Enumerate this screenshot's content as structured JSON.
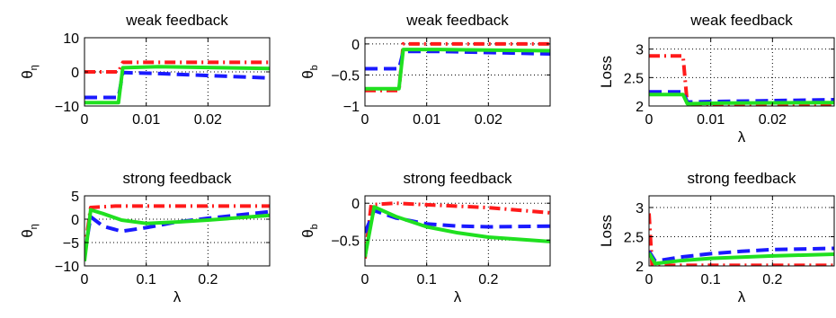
{
  "colors": {
    "red": "#ff1a1a",
    "blue": "#1a1aff",
    "green": "#20e020",
    "axis": "#000000",
    "grid": "#000000"
  },
  "chart_data": [
    {
      "type": "line",
      "title": "weak feedback",
      "ylabel": "θ",
      "ylabel_sub": "η",
      "xlabel": "",
      "xlim": [
        0,
        0.03
      ],
      "ylim": [
        -10,
        10
      ],
      "xticks": [
        0,
        0.01,
        0.02
      ],
      "xtick_labels": [
        "0",
        "0.01",
        "0.02"
      ],
      "yticks": [
        -10,
        0,
        10
      ],
      "ytick_labels": [
        "−10",
        "0",
        "10"
      ],
      "grid": true,
      "series": [
        {
          "color": "red",
          "style": "dashdot",
          "points": [
            [
              0,
              0
            ],
            [
              0.0055,
              0
            ],
            [
              0.0062,
              2.8
            ],
            [
              0.012,
              2.8
            ],
            [
              0.03,
              2.8
            ]
          ]
        },
        {
          "color": "blue",
          "style": "dashed",
          "points": [
            [
              0,
              -7.5
            ],
            [
              0.0055,
              -7.5
            ],
            [
              0.0062,
              -0.2
            ],
            [
              0.012,
              -0.5
            ],
            [
              0.03,
              -1.8
            ]
          ]
        },
        {
          "color": "green",
          "style": "solid",
          "points": [
            [
              0,
              -9
            ],
            [
              0.0055,
              -9
            ],
            [
              0.0062,
              1.2
            ],
            [
              0.012,
              1.5
            ],
            [
              0.03,
              1.0
            ]
          ]
        }
      ]
    },
    {
      "type": "line",
      "title": "weak feedback",
      "ylabel": "θ",
      "ylabel_sub": "b",
      "xlabel": "",
      "xlim": [
        0,
        0.03
      ],
      "ylim": [
        -1,
        0.1
      ],
      "xticks": [
        0,
        0.01,
        0.02
      ],
      "xtick_labels": [
        "0",
        "0.01",
        "0.02"
      ],
      "yticks": [
        -1,
        -0.5,
        0
      ],
      "ytick_labels": [
        "−1",
        "−0.5",
        "0"
      ],
      "grid": true,
      "series": [
        {
          "color": "red",
          "style": "dashdot",
          "points": [
            [
              0,
              -0.75
            ],
            [
              0.0055,
              -0.75
            ],
            [
              0.0062,
              0
            ],
            [
              0.012,
              0
            ],
            [
              0.03,
              0
            ]
          ]
        },
        {
          "color": "blue",
          "style": "dashed",
          "points": [
            [
              0,
              -0.4
            ],
            [
              0.0055,
              -0.4
            ],
            [
              0.0062,
              -0.12
            ],
            [
              0.012,
              -0.12
            ],
            [
              0.03,
              -0.16
            ]
          ]
        },
        {
          "color": "green",
          "style": "solid",
          "points": [
            [
              0,
              -0.72
            ],
            [
              0.0055,
              -0.72
            ],
            [
              0.0062,
              -0.09
            ],
            [
              0.012,
              -0.09
            ],
            [
              0.03,
              -0.11
            ]
          ]
        }
      ]
    },
    {
      "type": "line",
      "title": "weak feedback",
      "ylabel": "Loss",
      "xlabel": "λ",
      "xlim": [
        0,
        0.03
      ],
      "ylim": [
        2,
        3.2
      ],
      "xticks": [
        0,
        0.01,
        0.02
      ],
      "xtick_labels": [
        "0",
        "0.01",
        "0.02"
      ],
      "yticks": [
        2,
        2.5,
        3
      ],
      "ytick_labels": [
        "2",
        "2.5",
        "3"
      ],
      "grid": true,
      "series": [
        {
          "color": "red",
          "style": "dashdot",
          "points": [
            [
              0,
              2.88
            ],
            [
              0.0055,
              2.88
            ],
            [
              0.0062,
              2.03
            ],
            [
              0.012,
              2.03
            ],
            [
              0.03,
              2.03
            ]
          ]
        },
        {
          "color": "blue",
          "style": "dashed",
          "points": [
            [
              0,
              2.25
            ],
            [
              0.0055,
              2.25
            ],
            [
              0.0062,
              2.07
            ],
            [
              0.012,
              2.08
            ],
            [
              0.03,
              2.11
            ]
          ]
        },
        {
          "color": "green",
          "style": "solid",
          "points": [
            [
              0,
              2.2
            ],
            [
              0.0055,
              2.2
            ],
            [
              0.0062,
              2.04
            ],
            [
              0.012,
              2.05
            ],
            [
              0.03,
              2.06
            ]
          ]
        }
      ]
    },
    {
      "type": "line",
      "title": "strong feedback",
      "ylabel": "θ",
      "ylabel_sub": "η",
      "xlabel": "λ",
      "xlim": [
        0,
        0.3
      ],
      "ylim": [
        -10,
        5
      ],
      "xticks": [
        0,
        0.1,
        0.2
      ],
      "xtick_labels": [
        "0",
        "0.1",
        "0.2"
      ],
      "yticks": [
        -10,
        -5,
        0,
        5
      ],
      "ytick_labels": [
        "−10",
        "−5",
        "0",
        "5"
      ],
      "grid": true,
      "series": [
        {
          "color": "red",
          "style": "dashdot",
          "points": [
            [
              0,
              -7
            ],
            [
              0.01,
              2.5
            ],
            [
              0.05,
              2.8
            ],
            [
              0.1,
              2.8
            ],
            [
              0.2,
              2.8
            ],
            [
              0.3,
              2.8
            ]
          ]
        },
        {
          "color": "blue",
          "style": "dashed",
          "points": [
            [
              0,
              -7.5
            ],
            [
              0.01,
              0.5
            ],
            [
              0.03,
              -1.5
            ],
            [
              0.06,
              -2.6
            ],
            [
              0.1,
              -1.8
            ],
            [
              0.15,
              -0.6
            ],
            [
              0.2,
              0.2
            ],
            [
              0.3,
              1.6
            ]
          ]
        },
        {
          "color": "green",
          "style": "solid",
          "points": [
            [
              0,
              -9
            ],
            [
              0.01,
              2
            ],
            [
              0.03,
              1.2
            ],
            [
              0.06,
              -0.2
            ],
            [
              0.1,
              -0.9
            ],
            [
              0.15,
              -0.6
            ],
            [
              0.2,
              -0.2
            ],
            [
              0.3,
              0.8
            ]
          ]
        }
      ]
    },
    {
      "type": "line",
      "title": "strong feedback",
      "ylabel": "θ",
      "ylabel_sub": "b",
      "xlabel": "λ",
      "xlim": [
        0,
        0.3
      ],
      "ylim": [
        -0.85,
        0.1
      ],
      "xticks": [
        0,
        0.1,
        0.2
      ],
      "xtick_labels": [
        "0",
        "0.1",
        "0.2"
      ],
      "yticks": [
        -0.5,
        0
      ],
      "ytick_labels": [
        "−0.5",
        "0"
      ],
      "grid": true,
      "series": [
        {
          "color": "red",
          "style": "dashdot",
          "points": [
            [
              0,
              -0.75
            ],
            [
              0.01,
              -0.02
            ],
            [
              0.05,
              0
            ],
            [
              0.1,
              -0.02
            ],
            [
              0.2,
              -0.06
            ],
            [
              0.3,
              -0.13
            ]
          ]
        },
        {
          "color": "blue",
          "style": "dashed",
          "points": [
            [
              0,
              -0.4
            ],
            [
              0.015,
              -0.1
            ],
            [
              0.05,
              -0.2
            ],
            [
              0.1,
              -0.28
            ],
            [
              0.15,
              -0.31
            ],
            [
              0.2,
              -0.32
            ],
            [
              0.3,
              -0.31
            ]
          ]
        },
        {
          "color": "green",
          "style": "solid",
          "points": [
            [
              0,
              -0.73
            ],
            [
              0.015,
              -0.05
            ],
            [
              0.05,
              -0.18
            ],
            [
              0.1,
              -0.32
            ],
            [
              0.15,
              -0.4
            ],
            [
              0.2,
              -0.46
            ],
            [
              0.3,
              -0.52
            ]
          ]
        }
      ]
    },
    {
      "type": "line",
      "title": "strong feedback",
      "ylabel": "Loss",
      "xlabel": "λ",
      "xlim": [
        0,
        0.3
      ],
      "ylim": [
        2,
        3.2
      ],
      "xticks": [
        0,
        0.1,
        0.2
      ],
      "xtick_labels": [
        "0",
        "0.1",
        "0.2"
      ],
      "yticks": [
        2,
        2.5,
        3
      ],
      "ytick_labels": [
        "2",
        "2.5",
        "3"
      ],
      "grid": true,
      "series": [
        {
          "color": "red",
          "style": "dashdot",
          "points": [
            [
              0,
              2.9
            ],
            [
              0.005,
              2.01
            ],
            [
              0.3,
              2.01
            ]
          ]
        },
        {
          "color": "blue",
          "style": "dashed",
          "points": [
            [
              0,
              2.25
            ],
            [
              0.01,
              2.08
            ],
            [
              0.05,
              2.15
            ],
            [
              0.1,
              2.21
            ],
            [
              0.15,
              2.25
            ],
            [
              0.2,
              2.28
            ],
            [
              0.3,
              2.3
            ]
          ]
        },
        {
          "color": "green",
          "style": "solid",
          "points": [
            [
              0,
              2.22
            ],
            [
              0.01,
              2.04
            ],
            [
              0.05,
              2.09
            ],
            [
              0.1,
              2.13
            ],
            [
              0.15,
              2.15
            ],
            [
              0.2,
              2.17
            ],
            [
              0.3,
              2.2
            ]
          ]
        }
      ]
    }
  ]
}
